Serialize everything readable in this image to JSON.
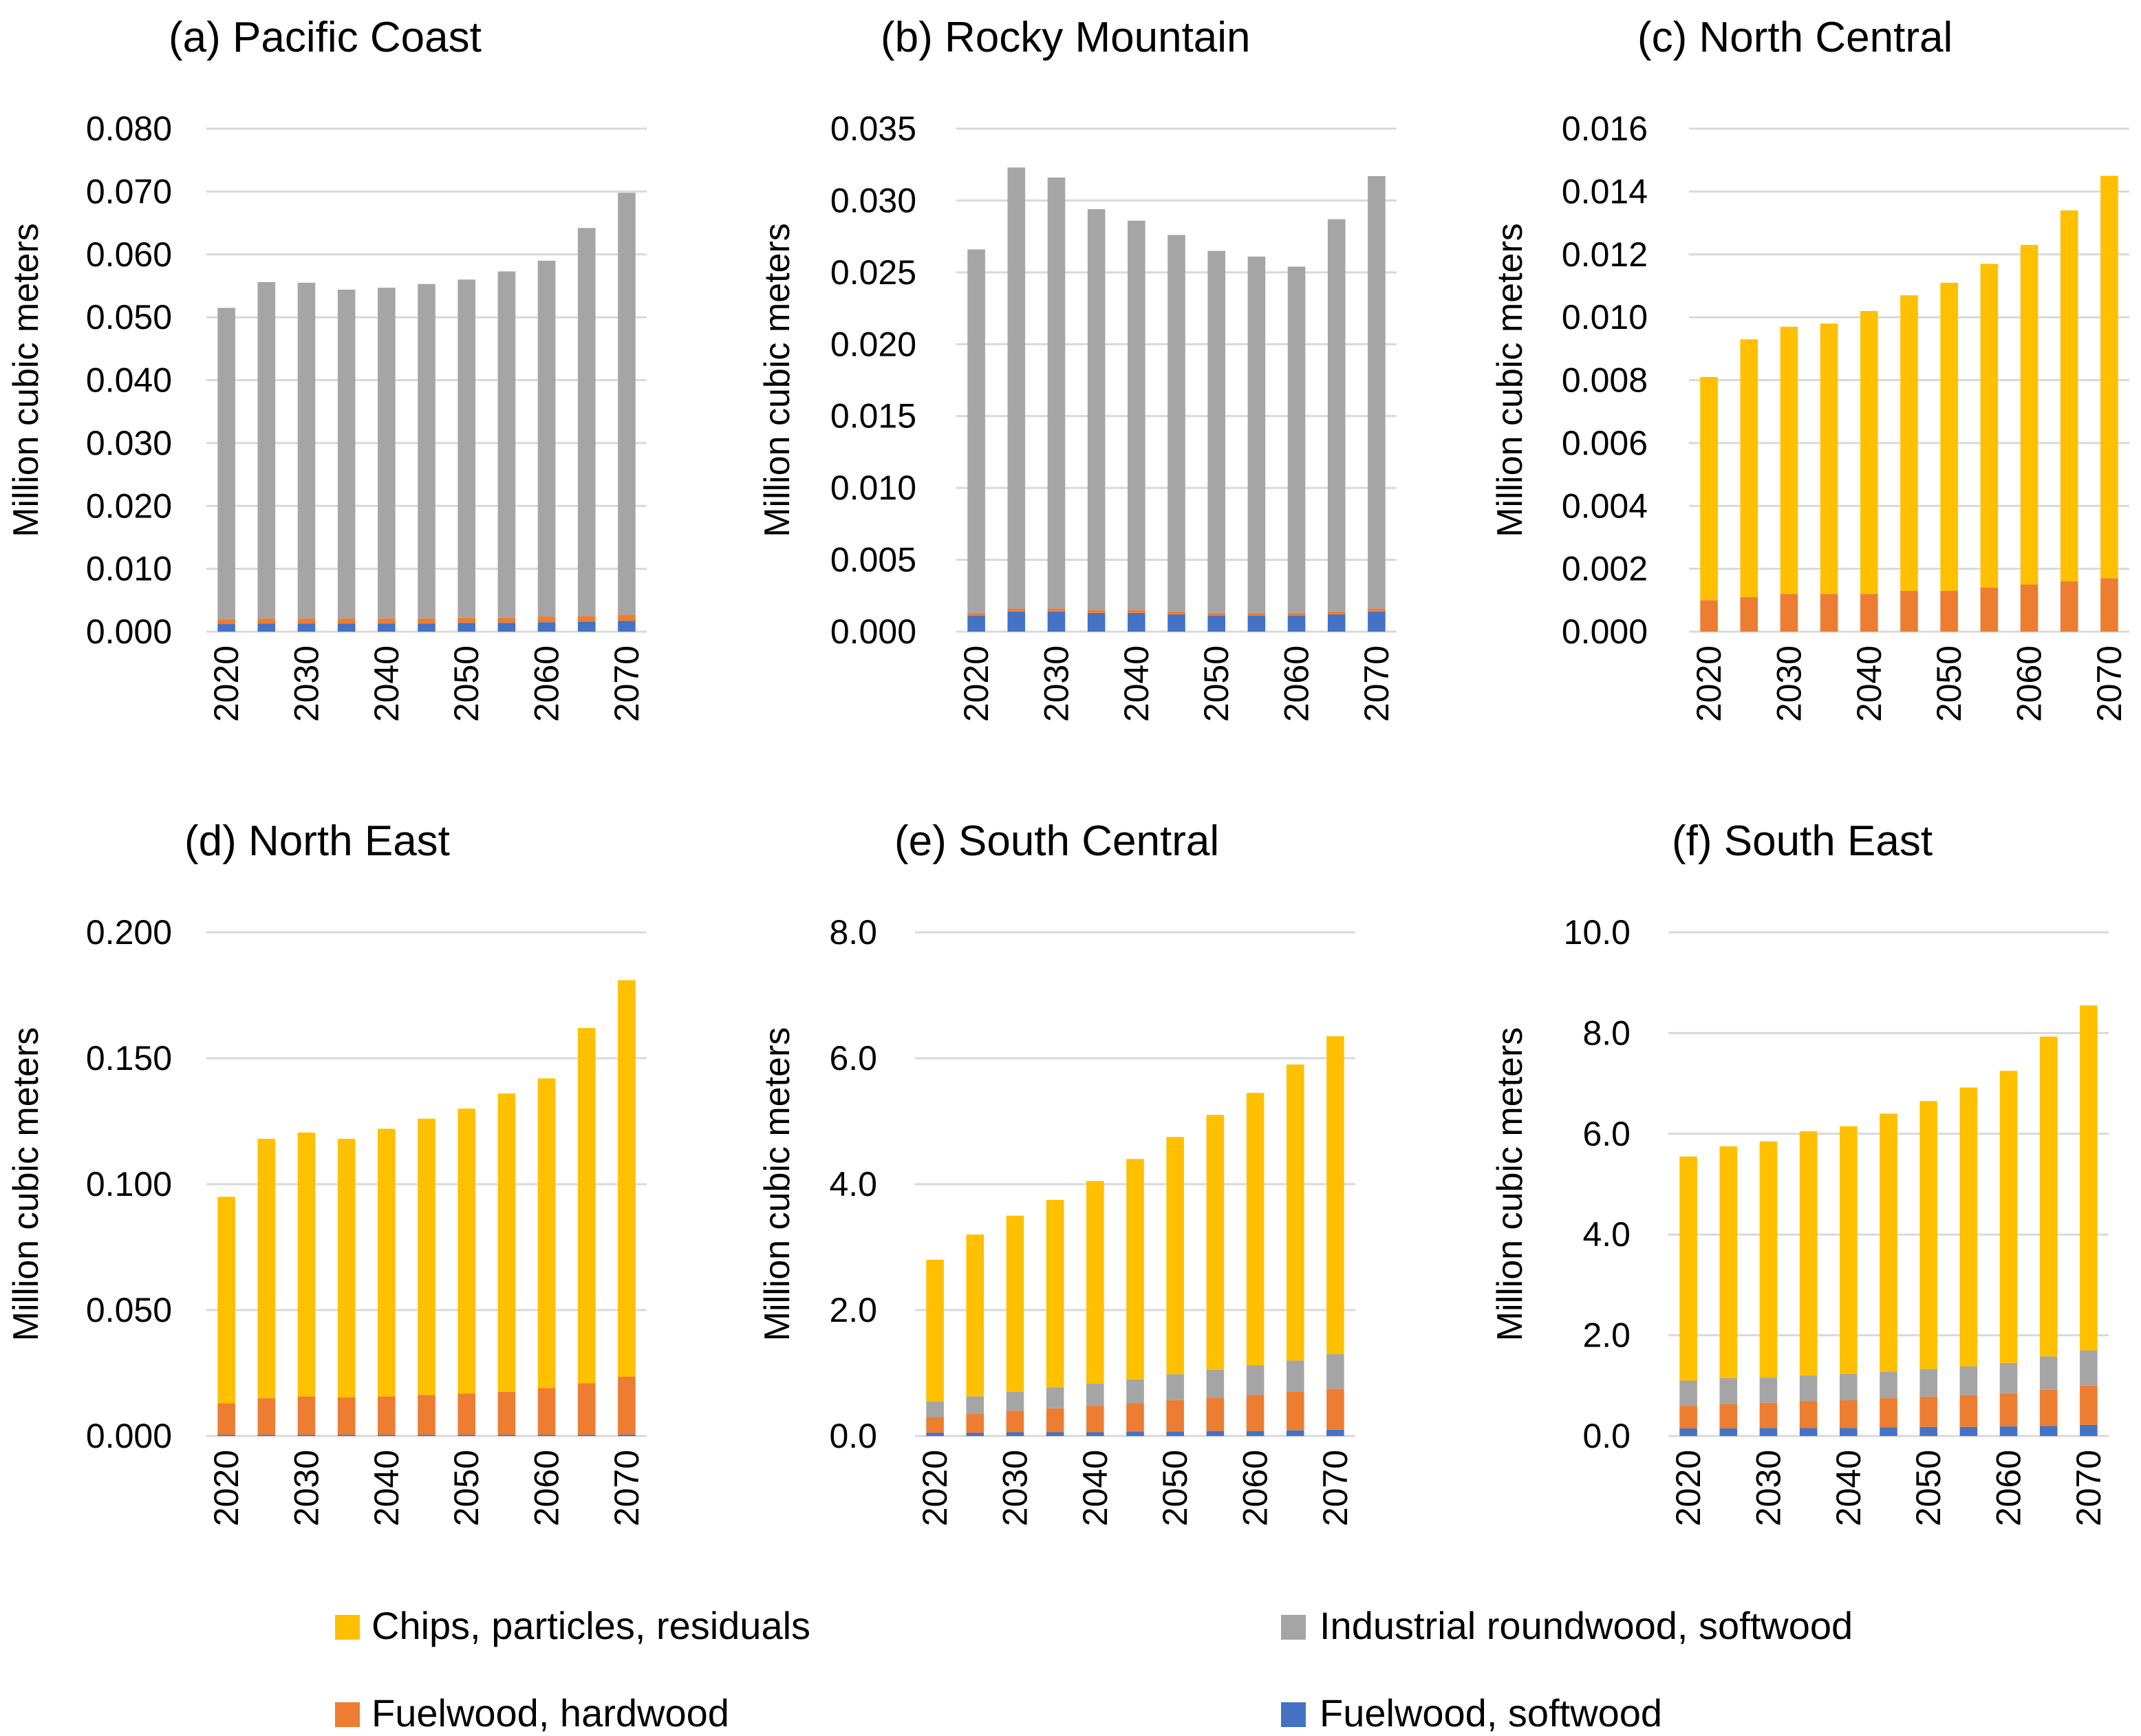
{
  "chart_data": [
    {
      "type": "bar",
      "stacked": true,
      "title": "(a) Pacific Coast",
      "ylabel": "Million cubic meters",
      "xlabel": "",
      "categories": [
        "2020",
        "2025",
        "2030",
        "2035",
        "2040",
        "2045",
        "2050",
        "2055",
        "2060",
        "2065",
        "2070"
      ],
      "x_tick_labels": [
        "2020",
        "2030",
        "2040",
        "2050",
        "2060",
        "2070"
      ],
      "ylim": [
        0,
        0.08
      ],
      "y_ticks": [
        "0.000",
        "0.010",
        "0.020",
        "0.030",
        "0.040",
        "0.050",
        "0.060",
        "0.070",
        "0.080"
      ],
      "series": [
        {
          "name": "Fuelwood, softwood",
          "values": [
            0.0012,
            0.0013,
            0.0013,
            0.0013,
            0.0013,
            0.0013,
            0.0014,
            0.0014,
            0.0015,
            0.0016,
            0.0017
          ]
        },
        {
          "name": "Fuelwood, hardwood",
          "values": [
            0.0008,
            0.0008,
            0.0008,
            0.0008,
            0.0008,
            0.0008,
            0.0008,
            0.0008,
            0.0009,
            0.0009,
            0.001
          ]
        },
        {
          "name": "Industrial roundwood, softwood",
          "values": [
            0.0495,
            0.0535,
            0.0534,
            0.0523,
            0.0526,
            0.0532,
            0.0538,
            0.0551,
            0.0566,
            0.0617,
            0.0671
          ]
        },
        {
          "name": "Chips, particles, residuals",
          "values": [
            0,
            0,
            0,
            0,
            0,
            0,
            0,
            0,
            0,
            0,
            0
          ]
        }
      ]
    },
    {
      "type": "bar",
      "stacked": true,
      "title": "(b) Rocky Mountain",
      "ylabel": "Million cubic meters",
      "xlabel": "",
      "categories": [
        "2020",
        "2025",
        "2030",
        "2035",
        "2040",
        "2045",
        "2050",
        "2055",
        "2060",
        "2065",
        "2070"
      ],
      "x_tick_labels": [
        "2020",
        "2030",
        "2040",
        "2050",
        "2060",
        "2070"
      ],
      "ylim": [
        0,
        0.035
      ],
      "y_ticks": [
        "0.000",
        "0.005",
        "0.010",
        "0.015",
        "0.020",
        "0.025",
        "0.030",
        "0.035"
      ],
      "series": [
        {
          "name": "Fuelwood, softwood",
          "values": [
            0.0011,
            0.0014,
            0.0014,
            0.0013,
            0.0013,
            0.0012,
            0.0011,
            0.0011,
            0.0011,
            0.0012,
            0.0014
          ]
        },
        {
          "name": "Fuelwood, hardwood",
          "values": [
            0.0002,
            0.0002,
            0.0002,
            0.0002,
            0.0002,
            0.0002,
            0.0002,
            0.0002,
            0.0002,
            0.0002,
            0.0002
          ]
        },
        {
          "name": "Industrial roundwood, softwood",
          "values": [
            0.0253,
            0.0307,
            0.03,
            0.0279,
            0.0271,
            0.0262,
            0.0252,
            0.0248,
            0.0241,
            0.0273,
            0.0301
          ]
        },
        {
          "name": "Chips, particles, residuals",
          "values": [
            0,
            0,
            0,
            0,
            0,
            0,
            0,
            0,
            0,
            0,
            0
          ]
        }
      ]
    },
    {
      "type": "bar",
      "stacked": true,
      "title": "(c) North Central",
      "ylabel": "Million cubic meters",
      "xlabel": "",
      "categories": [
        "2020",
        "2025",
        "2030",
        "2035",
        "2040",
        "2045",
        "2050",
        "2055",
        "2060",
        "2065",
        "2070"
      ],
      "x_tick_labels": [
        "2020",
        "2030",
        "2040",
        "2050",
        "2060",
        "2070"
      ],
      "ylim": [
        0,
        0.016
      ],
      "y_ticks": [
        "0.000",
        "0.002",
        "0.004",
        "0.006",
        "0.008",
        "0.010",
        "0.012",
        "0.014",
        "0.016"
      ],
      "series": [
        {
          "name": "Fuelwood, softwood",
          "values": [
            0,
            0,
            0,
            0,
            0,
            0,
            0,
            0,
            0,
            0,
            0
          ]
        },
        {
          "name": "Fuelwood, hardwood",
          "values": [
            0.001,
            0.0011,
            0.0012,
            0.0012,
            0.0012,
            0.0013,
            0.0013,
            0.0014,
            0.0015,
            0.0016,
            0.0017
          ]
        },
        {
          "name": "Industrial roundwood, softwood",
          "values": [
            0,
            0,
            0,
            0,
            0,
            0,
            0,
            0,
            0,
            0,
            0
          ]
        },
        {
          "name": "Chips, particles, residuals",
          "values": [
            0.0071,
            0.0082,
            0.0085,
            0.0086,
            0.009,
            0.0094,
            0.0098,
            0.0103,
            0.0108,
            0.0118,
            0.0128
          ]
        }
      ]
    },
    {
      "type": "bar",
      "stacked": true,
      "title": "(d) North East",
      "ylabel": "Million cubic meters",
      "xlabel": "",
      "categories": [
        "2020",
        "2025",
        "2030",
        "2035",
        "2040",
        "2045",
        "2050",
        "2055",
        "2060",
        "2065",
        "2070"
      ],
      "x_tick_labels": [
        "2020",
        "2030",
        "2040",
        "2050",
        "2060",
        "2070"
      ],
      "ylim": [
        0,
        0.2
      ],
      "y_ticks": [
        "0.000",
        "0.050",
        "0.100",
        "0.150",
        "0.200"
      ],
      "series": [
        {
          "name": "Fuelwood, softwood",
          "values": [
            0.0005,
            0.0005,
            0.0005,
            0.0005,
            0.0005,
            0.0005,
            0.0005,
            0.0005,
            0.0005,
            0.0005,
            0.0006
          ]
        },
        {
          "name": "Fuelwood, hardwood",
          "values": [
            0.0125,
            0.0145,
            0.0152,
            0.0148,
            0.0152,
            0.0158,
            0.0163,
            0.017,
            0.0185,
            0.0205,
            0.023
          ]
        },
        {
          "name": "Industrial roundwood, softwood",
          "values": [
            0,
            0,
            0,
            0,
            0,
            0,
            0,
            0,
            0,
            0,
            0
          ]
        },
        {
          "name": "Chips, particles, residuals",
          "values": [
            0.082,
            0.103,
            0.1048,
            0.1027,
            0.1063,
            0.1097,
            0.1132,
            0.1185,
            0.123,
            0.141,
            0.1574
          ]
        }
      ]
    },
    {
      "type": "bar",
      "stacked": true,
      "title": "(e) South Central",
      "ylabel": "Million cubic meters",
      "xlabel": "",
      "categories": [
        "2020",
        "2025",
        "2030",
        "2035",
        "2040",
        "2045",
        "2050",
        "2055",
        "2060",
        "2065",
        "2070"
      ],
      "x_tick_labels": [
        "2020",
        "2030",
        "2040",
        "2050",
        "2060",
        "2070"
      ],
      "ylim": [
        0,
        8
      ],
      "y_ticks": [
        "0.0",
        "2.0",
        "4.0",
        "6.0",
        "8.0"
      ],
      "series": [
        {
          "name": "Fuelwood, softwood",
          "values": [
            0.05,
            0.05,
            0.06,
            0.06,
            0.06,
            0.07,
            0.07,
            0.08,
            0.08,
            0.09,
            0.1
          ]
        },
        {
          "name": "Fuelwood, hardwood",
          "values": [
            0.25,
            0.3,
            0.34,
            0.38,
            0.42,
            0.45,
            0.5,
            0.53,
            0.57,
            0.61,
            0.65
          ]
        },
        {
          "name": "Industrial roundwood, softwood",
          "values": [
            0.25,
            0.28,
            0.3,
            0.33,
            0.35,
            0.38,
            0.41,
            0.44,
            0.47,
            0.5,
            0.55
          ]
        },
        {
          "name": "Chips, particles, residuals",
          "values": [
            2.25,
            2.57,
            2.8,
            2.98,
            3.22,
            3.5,
            3.77,
            4.05,
            4.33,
            4.7,
            5.05
          ]
        }
      ]
    },
    {
      "type": "bar",
      "stacked": true,
      "title": "(f) South East",
      "ylabel": "Million cubic meters",
      "xlabel": "",
      "categories": [
        "2020",
        "2025",
        "2030",
        "2035",
        "2040",
        "2045",
        "2050",
        "2055",
        "2060",
        "2065",
        "2070"
      ],
      "x_tick_labels": [
        "2020",
        "2030",
        "2040",
        "2050",
        "2060",
        "2070"
      ],
      "ylim": [
        0,
        10
      ],
      "y_ticks": [
        "0.0",
        "2.0",
        "4.0",
        "6.0",
        "8.0",
        "10.0"
      ],
      "series": [
        {
          "name": "Fuelwood, softwood",
          "values": [
            0.15,
            0.15,
            0.16,
            0.16,
            0.16,
            0.17,
            0.18,
            0.18,
            0.19,
            0.2,
            0.22
          ]
        },
        {
          "name": "Fuelwood, hardwood",
          "values": [
            0.45,
            0.48,
            0.5,
            0.53,
            0.55,
            0.58,
            0.6,
            0.63,
            0.66,
            0.72,
            0.78
          ]
        },
        {
          "name": "Industrial roundwood, softwood",
          "values": [
            0.5,
            0.52,
            0.5,
            0.51,
            0.52,
            0.53,
            0.55,
            0.57,
            0.6,
            0.66,
            0.7
          ]
        },
        {
          "name": "Chips, particles, residuals",
          "values": [
            4.45,
            4.6,
            4.69,
            4.85,
            4.92,
            5.12,
            5.32,
            5.54,
            5.8,
            6.35,
            6.85
          ]
        }
      ]
    }
  ],
  "legend": {
    "items": [
      {
        "label": "Chips, particles, residuals",
        "color": "#FFC000"
      },
      {
        "label": "Industrial roundwood, softwood",
        "color": "#A5A5A5"
      },
      {
        "label": "Fuelwood, hardwood",
        "color": "#ED7D31"
      },
      {
        "label": "Fuelwood, softwood",
        "color": "#4472C4"
      }
    ]
  },
  "colors": {
    "Fuelwood, softwood": "#4472C4",
    "Fuelwood, hardwood": "#ED7D31",
    "Industrial roundwood, softwood": "#A5A5A5",
    "Chips, particles, residuals": "#FFC000"
  }
}
